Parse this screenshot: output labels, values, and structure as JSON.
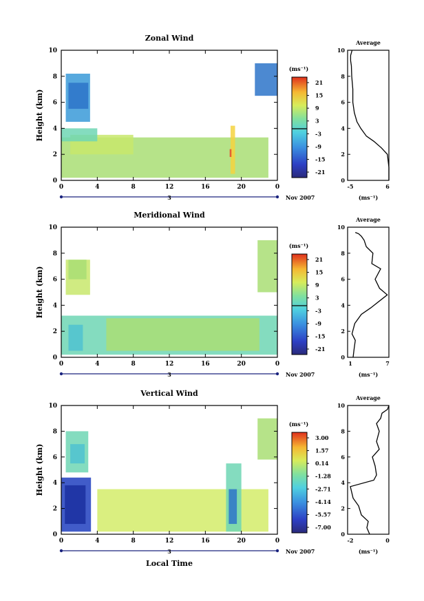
{
  "chart_data": [
    {
      "type": "heatmap",
      "title": "Zonal Wind",
      "ylabel": "Height (km)",
      "yticks": [
        "0",
        "2",
        "4",
        "6",
        "8",
        "10"
      ],
      "ylim": [
        0,
        10
      ],
      "xticks": [
        "0",
        "4",
        "8",
        "12",
        "16",
        "20",
        "0"
      ],
      "xlim": [
        0,
        24
      ],
      "date_mid_label": "3",
      "date_right_label": "Nov 2007",
      "colorbar_unit": "(ms⁻¹)",
      "colorbar_ticks": [
        "21",
        "15",
        "9",
        "3",
        "-3",
        "-9",
        "-15",
        "-21"
      ],
      "colorbar_zero_line": 0,
      "average_title": "Average",
      "average_xticks": [
        "-5",
        "6"
      ],
      "average_xlim": [
        -5,
        6
      ],
      "average_xlabel": "(ms⁻¹)",
      "average_profile": {
        "x": [
          6,
          6,
          5.6,
          4,
          2,
          0,
          -1.5,
          -2.5,
          -3.2,
          -3.6,
          -3.6,
          -3.9,
          -4,
          -4.2,
          -4.2,
          -3.8
        ],
        "y": [
          0,
          1,
          2,
          2.5,
          3,
          3.4,
          4,
          4.5,
          5.2,
          6,
          7,
          8,
          8.8,
          9.2,
          9.6,
          10
        ]
      },
      "blobs": [
        {
          "x": [
            0.5,
            3.2
          ],
          "y": [
            4.5,
            8.2
          ],
          "color": "#3a9ad8"
        },
        {
          "x": [
            0.8,
            3
          ],
          "y": [
            5.5,
            7.5
          ],
          "color": "#2d74c9"
        },
        {
          "x": [
            21.5,
            24
          ],
          "y": [
            6.5,
            9
          ],
          "color": "#2d74c9"
        },
        {
          "x": [
            0,
            23
          ],
          "y": [
            0.2,
            3.3
          ],
          "color": "#a9de74"
        },
        {
          "x": [
            1,
            8
          ],
          "y": [
            2,
            3.5
          ],
          "color": "#c8e86c"
        },
        {
          "x": [
            0,
            4
          ],
          "y": [
            3,
            4
          ],
          "color": "#6fd6b4"
        },
        {
          "x": [
            18.8,
            19.3
          ],
          "y": [
            0.5,
            4.2
          ],
          "color": "#f5d440"
        },
        {
          "x": [
            18.7,
            18.9
          ],
          "y": [
            1.8,
            2.4
          ],
          "color": "#e64b2c"
        }
      ]
    },
    {
      "type": "heatmap",
      "title": "Meridional Wind",
      "ylabel": "Height (km)",
      "yticks": [
        "0",
        "2",
        "4",
        "6",
        "8",
        "10"
      ],
      "ylim": [
        0,
        10
      ],
      "xticks": [
        "0",
        "4",
        "8",
        "12",
        "16",
        "20",
        "0"
      ],
      "xlim": [
        0,
        24
      ],
      "date_mid_label": "3",
      "date_right_label": "Nov 2007",
      "colorbar_unit": "(ms⁻¹)",
      "colorbar_ticks": [
        "21",
        "15",
        "9",
        "3",
        "-3",
        "-9",
        "-15",
        "-21"
      ],
      "colorbar_zero_line": 0,
      "average_title": "Average",
      "average_xticks": [
        "1",
        "7"
      ],
      "average_xlim": [
        0,
        7.5
      ],
      "average_xlabel": "(ms⁻¹)",
      "average_profile": {
        "x": [
          1,
          1.2,
          1.4,
          0.8,
          1.3,
          2.5,
          4.2,
          7.2,
          5.8,
          5,
          6,
          4.4,
          4.6,
          3.4,
          3,
          2.5,
          2,
          1.4
        ],
        "y": [
          0,
          0.7,
          1.3,
          1.8,
          2.6,
          3.3,
          3.8,
          4.8,
          5.3,
          6,
          6.8,
          7.2,
          8,
          8.5,
          9,
          9.3,
          9.5,
          9.6
        ]
      },
      "blobs": [
        {
          "x": [
            0.5,
            3.2
          ],
          "y": [
            4.8,
            7.5
          ],
          "color": "#c8e86c"
        },
        {
          "x": [
            0.8,
            2.8
          ],
          "y": [
            6,
            7.5
          ],
          "color": "#a9de74"
        },
        {
          "x": [
            0,
            24
          ],
          "y": [
            0.2,
            3.2
          ],
          "color": "#6fd6b4"
        },
        {
          "x": [
            5,
            22
          ],
          "y": [
            0.5,
            3
          ],
          "color": "#a9de74"
        },
        {
          "x": [
            21.8,
            24
          ],
          "y": [
            5,
            9
          ],
          "color": "#a9de74"
        },
        {
          "x": [
            0.8,
            2.4
          ],
          "y": [
            0.5,
            2.5
          ],
          "color": "#4fc2d0"
        }
      ]
    },
    {
      "type": "heatmap",
      "title": "Vertical Wind",
      "ylabel": "Height (km)",
      "yticks": [
        "0",
        "2",
        "4",
        "6",
        "8",
        "10"
      ],
      "ylim": [
        0,
        10
      ],
      "xticks": [
        "0",
        "4",
        "8",
        "12",
        "16",
        "20",
        "0"
      ],
      "xlim": [
        0,
        24
      ],
      "xlabel": "Local Time",
      "date_mid_label": "3",
      "date_right_label": "Nov 2007",
      "colorbar_unit": "(ms⁻¹)",
      "colorbar_ticks": [
        "3.00",
        "1.57",
        "0.14",
        "-1.28",
        "-2.71",
        "-4.14",
        "-5.57",
        "-7.00"
      ],
      "colorbar_zero_line": null,
      "average_title": "Average",
      "average_xticks": [
        "-2",
        "0"
      ],
      "average_xlim": [
        -3,
        0
      ],
      "average_xlabel": "(ms⁻¹)",
      "average_profile": {
        "x": [
          -1.4,
          -1.6,
          -1.5,
          -2,
          -2.2,
          -2.6,
          -2.8,
          -1.1,
          -0.9,
          -1,
          -1.2,
          -0.7,
          -0.9,
          -0.7,
          -0.9,
          -0.6,
          -0.5,
          -0.1,
          0
        ],
        "y": [
          0,
          0.5,
          1,
          1.5,
          2.2,
          2.8,
          3.7,
          4.2,
          4.6,
          5.3,
          6,
          6.6,
          7.2,
          8,
          8.6,
          9,
          9.4,
          9.7,
          10
        ]
      },
      "blobs": [
        {
          "x": [
            0.5,
            3
          ],
          "y": [
            4.8,
            8
          ],
          "color": "#6fd6b4"
        },
        {
          "x": [
            1,
            2.6
          ],
          "y": [
            5.5,
            7
          ],
          "color": "#4fc2d0"
        },
        {
          "x": [
            0,
            3.3
          ],
          "y": [
            0.2,
            4.4
          ],
          "color": "#2040c0"
        },
        {
          "x": [
            0.4,
            2.7
          ],
          "y": [
            0.8,
            3.8
          ],
          "color": "#1b2fa0"
        },
        {
          "x": [
            4,
            23
          ],
          "y": [
            0.2,
            3.5
          ],
          "color": "#d4ec6a"
        },
        {
          "x": [
            18.3,
            20
          ],
          "y": [
            0.2,
            5.5
          ],
          "color": "#6fd6b4"
        },
        {
          "x": [
            18.6,
            19.5
          ],
          "y": [
            0.8,
            3.5
          ],
          "color": "#2d74c9"
        },
        {
          "x": [
            21.8,
            24
          ],
          "y": [
            5.8,
            9
          ],
          "color": "#a9de74"
        }
      ]
    }
  ]
}
